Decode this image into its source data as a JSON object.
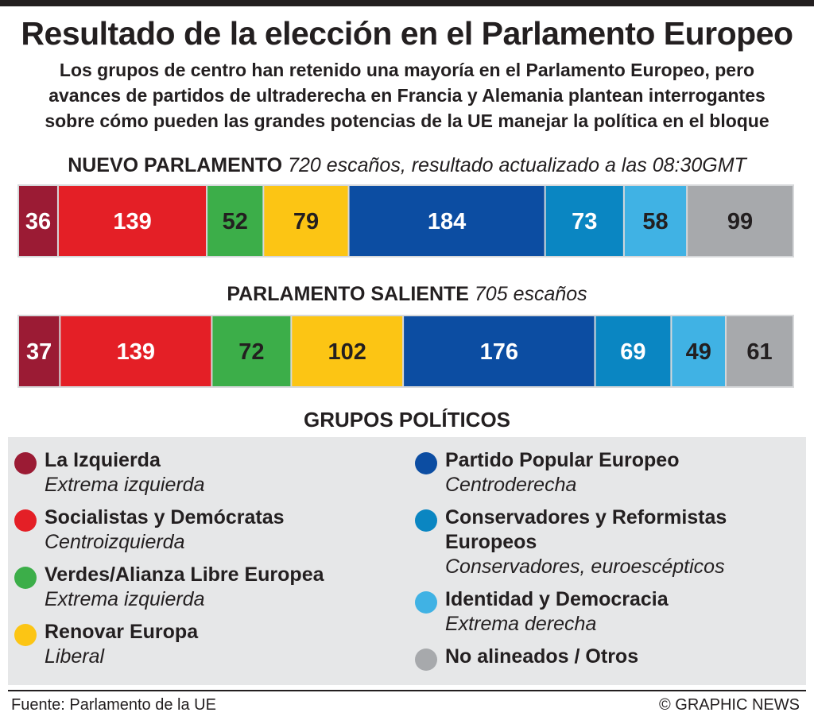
{
  "title": "Resultado de la elección en el Parlamento Europeo",
  "subtitle_lines": [
    "Los grupos de centro han retenido una mayoría en el Parlamento Europeo, pero",
    "avances de partidos de ultraderecha en Francia y Alemania plantean interrogantes",
    "sobre cómo pueden las grandes potencias de la UE manejar la política en el bloque"
  ],
  "new_parliament": {
    "heading": "NUEVO PARLAMENTO",
    "note": "720 escaños, resultado actualizado a las 08:30GMT"
  },
  "outgoing_parliament": {
    "heading": "PARLAMENTO SALIENTE",
    "note": "705 escaños"
  },
  "groups_title": "GRUPOS POLÍTICOS",
  "colors": {
    "left": "#9b1b34",
    "sd": "#e41f26",
    "greens": "#3cae49",
    "renew": "#fcc514",
    "epp": "#0c4da2",
    "ecr": "#0a86c2",
    "id": "#40b2e4",
    "ni": "#a7a9ac"
  },
  "legend": {
    "left_column": [
      {
        "key": "left",
        "name": "La Izquierda",
        "desc": "Extrema izquierda"
      },
      {
        "key": "sd",
        "name": "Socialistas y Demócratas",
        "desc": "Centroizquierda"
      },
      {
        "key": "greens",
        "name": "Verdes/Alianza Libre Europea",
        "desc": "Extrema izquierda"
      },
      {
        "key": "renew",
        "name": "Renovar Europa",
        "desc": "Liberal"
      }
    ],
    "right_column": [
      {
        "key": "epp",
        "name": "Partido Popular Europeo",
        "desc": "Centroderecha"
      },
      {
        "key": "ecr",
        "name": "Conservadores y Reformistas Europeos",
        "desc": "Conservadores, euroescépticos"
      },
      {
        "key": "id",
        "name": "Identidad y Democracia",
        "desc": "Extrema derecha"
      },
      {
        "key": "ni",
        "name": "No alineados / Otros",
        "desc": ""
      }
    ]
  },
  "chart_data": [
    {
      "type": "bar",
      "orientation": "horizontal-stacked",
      "title": "NUEVO PARLAMENTO",
      "total": 720,
      "categories": [
        "La Izquierda",
        "Socialistas y Demócratas",
        "Verdes/Alianza Libre Europea",
        "Renovar Europa",
        "Partido Popular Europeo",
        "Conservadores y Reformistas Europeos",
        "Identidad y Democracia",
        "No alineados / Otros"
      ],
      "keys": [
        "left",
        "sd",
        "greens",
        "renew",
        "epp",
        "ecr",
        "id",
        "ni"
      ],
      "values": [
        36,
        139,
        52,
        79,
        184,
        73,
        58,
        99
      ]
    },
    {
      "type": "bar",
      "orientation": "horizontal-stacked",
      "title": "PARLAMENTO SALIENTE",
      "total": 705,
      "categories": [
        "La Izquierda",
        "Socialistas y Demócratas",
        "Verdes/Alianza Libre Europea",
        "Renovar Europa",
        "Partido Popular Europeo",
        "Conservadores y Reformistas Europeos",
        "Identidad y Democracia",
        "No alineados / Otros"
      ],
      "keys": [
        "left",
        "sd",
        "greens",
        "renew",
        "epp",
        "ecr",
        "id",
        "ni"
      ],
      "values": [
        37,
        139,
        72,
        102,
        176,
        69,
        49,
        61
      ]
    }
  ],
  "footer": {
    "source": "Fuente: Parlamento de la UE",
    "credit": "© GRAPHIC NEWS"
  }
}
